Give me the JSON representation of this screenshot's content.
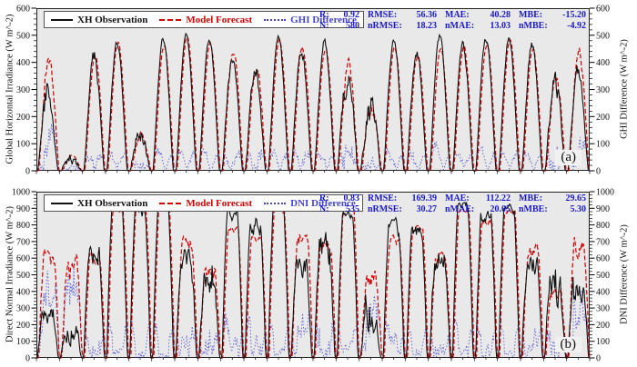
{
  "colors": {
    "observation": "#111111",
    "forecast": "#d40000",
    "difference": "#4444cc",
    "stats_text": "#1a1acc",
    "plot_bg": "#e9e9e9"
  },
  "chart_data": [
    {
      "type": "line",
      "panel_label": "(a)",
      "ylabel_left": "Global Horizontal Irradiance (W m^-2)",
      "ylabel_right": "GHI Difference (W m^-2)",
      "ylim": [
        0,
        600
      ],
      "ytick_step": 100,
      "yticks": [
        0,
        100,
        200,
        300,
        400,
        500,
        600
      ],
      "x_days": 24,
      "grid": false,
      "legend_position": "top-left",
      "legend": [
        {
          "name": "XH Observation",
          "style": "solid",
          "color": "#111111"
        },
        {
          "name": "Model Forecast",
          "style": "dashed",
          "color": "#d40000"
        },
        {
          "name": "GHI Difference",
          "style": "dotted",
          "color": "#4444cc"
        }
      ],
      "stats": [
        {
          "label": "R:",
          "value": "0.92"
        },
        {
          "label": "N:",
          "value": "580"
        },
        {
          "label": "RMSE:",
          "value": "56.36"
        },
        {
          "label": "nRMSE:",
          "value": "18.23"
        },
        {
          "label": "MAE:",
          "value": "40.28"
        },
        {
          "label": "nMAE:",
          "value": "13.03"
        },
        {
          "label": "MBE:",
          "value": "-15.20"
        },
        {
          "label": "nMBE:",
          "value": "-4.92"
        }
      ],
      "series": {
        "observation_daily_peak": [
          380,
          70,
          460,
          490,
          190,
          505,
          510,
          505,
          450,
          425,
          510,
          480,
          500,
          440,
          330,
          505,
          465,
          525,
          490,
          510,
          500,
          490,
          390,
          410
        ],
        "forecast_daily_peak": [
          465,
          60,
          440,
          480,
          150,
          470,
          500,
          480,
          460,
          420,
          490,
          470,
          465,
          430,
          300,
          470,
          440,
          460,
          470,
          480,
          490,
          465,
          380,
          465
        ],
        "variability": [
          0.45,
          0.8,
          0.25,
          0.1,
          0.7,
          0.08,
          0.06,
          0.08,
          0.2,
          0.35,
          0.08,
          0.15,
          0.12,
          0.5,
          0.75,
          0.1,
          0.2,
          0.12,
          0.15,
          0.1,
          0.08,
          0.12,
          0.5,
          0.3
        ]
      }
    },
    {
      "type": "line",
      "panel_label": "(b)",
      "ylabel_left": "Direct Normal Irradiance (W m^-2)",
      "ylabel_right": "DNI Difference (W m^-2)",
      "ylim": [
        0,
        1000
      ],
      "ytick_step": 100,
      "yticks": [
        0,
        100,
        200,
        300,
        400,
        500,
        600,
        700,
        800,
        900,
        1000
      ],
      "x_days": 24,
      "grid": false,
      "legend_position": "top-left",
      "legend": [
        {
          "name": "XH Observation",
          "style": "solid",
          "color": "#111111"
        },
        {
          "name": "Model Forecast",
          "style": "dashed",
          "color": "#d40000"
        },
        {
          "name": "DNI Difference",
          "style": "dotted",
          "color": "#4444cc"
        }
      ],
      "stats": [
        {
          "label": "R:",
          "value": "0.83"
        },
        {
          "label": "N:",
          "value": "535"
        },
        {
          "label": "RMSE:",
          "value": "169.39"
        },
        {
          "label": "nRMSE:",
          "value": "30.27"
        },
        {
          "label": "MAE:",
          "value": "112.22"
        },
        {
          "label": "nMAE:",
          "value": "20.05"
        },
        {
          "label": "MBE:",
          "value": "29.65"
        },
        {
          "label": "nMBE:",
          "value": "5.30"
        }
      ],
      "series": {
        "observation_daily_peak": [
          350,
          250,
          700,
          950,
          930,
          950,
          700,
          550,
          930,
          880,
          950,
          650,
          800,
          900,
          350,
          850,
          820,
          700,
          950,
          900,
          930,
          650,
          550,
          520
        ],
        "forecast_daily_peak": [
          700,
          650,
          650,
          900,
          920,
          940,
          750,
          600,
          800,
          750,
          900,
          800,
          750,
          950,
          550,
          750,
          800,
          650,
          900,
          850,
          900,
          700,
          450,
          750
        ],
        "variability": [
          0.6,
          0.85,
          0.3,
          0.08,
          0.15,
          0.08,
          0.35,
          0.6,
          0.15,
          0.2,
          0.1,
          0.4,
          0.45,
          0.12,
          0.85,
          0.25,
          0.2,
          0.35,
          0.1,
          0.15,
          0.1,
          0.35,
          0.7,
          0.5
        ]
      }
    }
  ]
}
